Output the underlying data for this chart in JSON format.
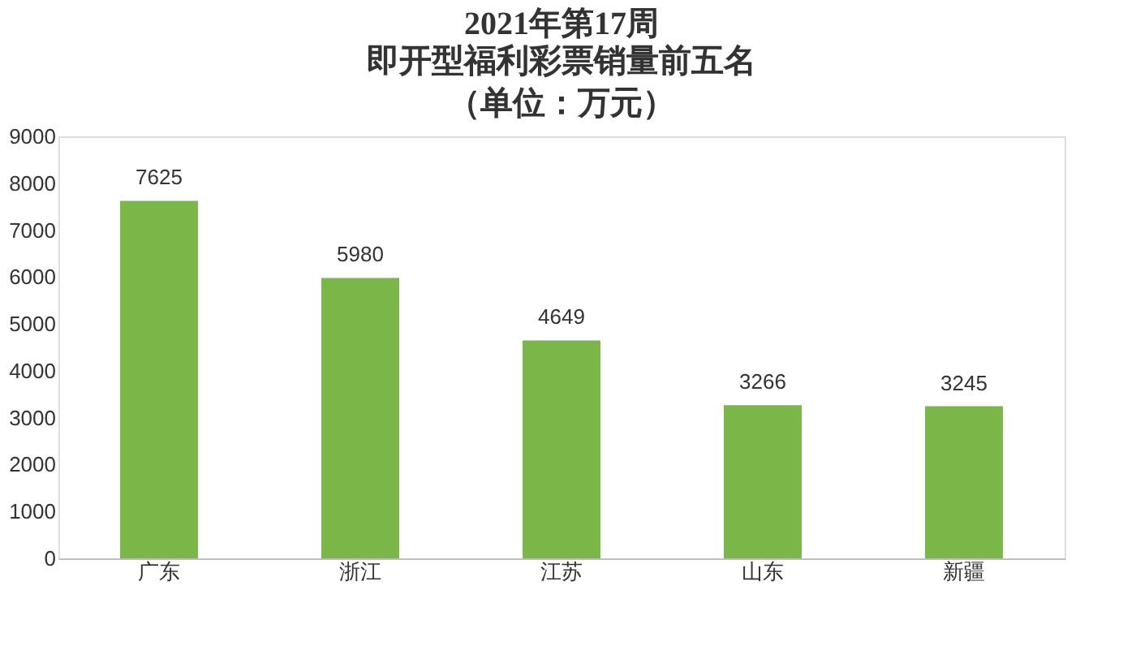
{
  "chart_data": {
    "type": "bar",
    "title": "2021年第17周",
    "subtitle": "即开型福利彩票销量前五名",
    "annotations": [
      "（单位：万元）"
    ],
    "categories": [
      "广东",
      "浙江",
      "江苏",
      "山东",
      "新疆"
    ],
    "values": [
      7625,
      5980,
      4649,
      3266,
      3245
    ],
    "color": "#7ab648",
    "ylim": [
      0,
      9000
    ],
    "yticks": [
      0,
      1000,
      2000,
      3000,
      4000,
      5000,
      6000,
      7000,
      8000,
      9000
    ],
    "grid": false,
    "data_labels": true
  }
}
